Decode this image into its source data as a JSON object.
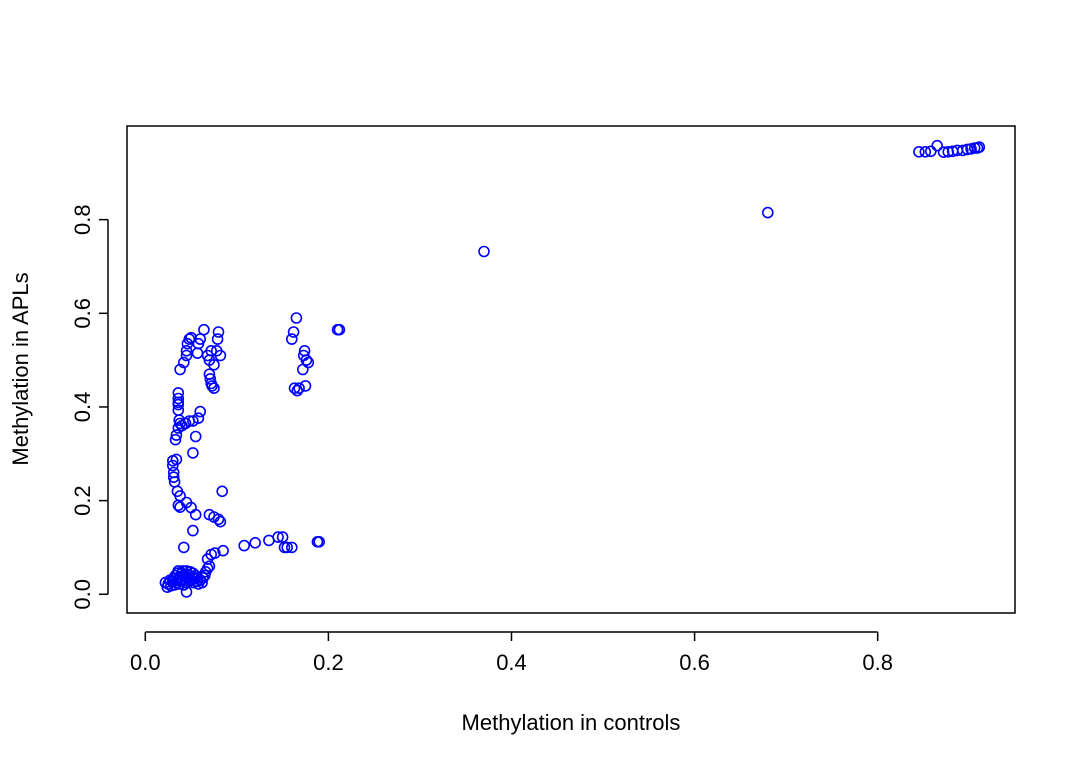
{
  "chart_data": {
    "type": "scatter",
    "title": "",
    "xlabel": "Methylation in controls",
    "ylabel": "Methylation in APLs",
    "xlim": [
      -0.02,
      0.95
    ],
    "ylim": [
      -0.04,
      1.0
    ],
    "xticks": [
      0.0,
      0.2,
      0.4,
      0.6,
      0.8
    ],
    "yticks": [
      0.0,
      0.2,
      0.4,
      0.6,
      0.8
    ],
    "xtick_labels": [
      "0.0",
      "0.2",
      "0.4",
      "0.6",
      "0.8"
    ],
    "ytick_labels": [
      "0.0",
      "0.2",
      "0.4",
      "0.6",
      "0.8"
    ],
    "grid": false,
    "legend": "none",
    "point_color": "#0000FF",
    "marker": "open-circle",
    "series": [
      {
        "points": [
          [
            0.022,
            0.025
          ],
          [
            0.024,
            0.015
          ],
          [
            0.025,
            0.022
          ],
          [
            0.027,
            0.03
          ],
          [
            0.028,
            0.018
          ],
          [
            0.03,
            0.028
          ],
          [
            0.031,
            0.035
          ],
          [
            0.032,
            0.02
          ],
          [
            0.033,
            0.04
          ],
          [
            0.034,
            0.025
          ],
          [
            0.035,
            0.045
          ],
          [
            0.035,
            0.03
          ],
          [
            0.036,
            0.05
          ],
          [
            0.037,
            0.022
          ],
          [
            0.038,
            0.038
          ],
          [
            0.039,
            0.028
          ],
          [
            0.04,
            0.045
          ],
          [
            0.04,
            0.032
          ],
          [
            0.041,
            0.05
          ],
          [
            0.042,
            0.02
          ],
          [
            0.043,
            0.04
          ],
          [
            0.044,
            0.03
          ],
          [
            0.045,
            0.05
          ],
          [
            0.045,
            0.025
          ],
          [
            0.046,
            0.035
          ],
          [
            0.047,
            0.042
          ],
          [
            0.048,
            0.028
          ],
          [
            0.049,
            0.048
          ],
          [
            0.05,
            0.03
          ],
          [
            0.051,
            0.038
          ],
          [
            0.052,
            0.045
          ],
          [
            0.053,
            0.025
          ],
          [
            0.054,
            0.033
          ],
          [
            0.055,
            0.04
          ],
          [
            0.056,
            0.028
          ],
          [
            0.057,
            0.035
          ],
          [
            0.058,
            0.022
          ],
          [
            0.06,
            0.03
          ],
          [
            0.062,
            0.025
          ],
          [
            0.063,
            0.035
          ],
          [
            0.065,
            0.04
          ],
          [
            0.066,
            0.048
          ],
          [
            0.068,
            0.055
          ],
          [
            0.07,
            0.06
          ],
          [
            0.045,
            0.005
          ],
          [
            0.042,
            0.1
          ],
          [
            0.068,
            0.075
          ],
          [
            0.072,
            0.085
          ],
          [
            0.076,
            0.088
          ],
          [
            0.085,
            0.093
          ],
          [
            0.108,
            0.104
          ],
          [
            0.12,
            0.11
          ],
          [
            0.135,
            0.115
          ],
          [
            0.145,
            0.122
          ],
          [
            0.15,
            0.122
          ],
          [
            0.152,
            0.1
          ],
          [
            0.155,
            0.1
          ],
          [
            0.16,
            0.1
          ],
          [
            0.188,
            0.112
          ],
          [
            0.19,
            0.112
          ],
          [
            0.036,
            0.19
          ],
          [
            0.038,
            0.186
          ],
          [
            0.045,
            0.196
          ],
          [
            0.05,
            0.185
          ],
          [
            0.055,
            0.17
          ],
          [
            0.07,
            0.17
          ],
          [
            0.075,
            0.165
          ],
          [
            0.08,
            0.16
          ],
          [
            0.082,
            0.155
          ],
          [
            0.084,
            0.22
          ],
          [
            0.052,
            0.136
          ],
          [
            0.03,
            0.285
          ],
          [
            0.03,
            0.275
          ],
          [
            0.031,
            0.26
          ],
          [
            0.031,
            0.25
          ],
          [
            0.032,
            0.24
          ],
          [
            0.034,
            0.288
          ],
          [
            0.035,
            0.22
          ],
          [
            0.038,
            0.21
          ],
          [
            0.052,
            0.302
          ],
          [
            0.033,
            0.33
          ],
          [
            0.034,
            0.34
          ],
          [
            0.036,
            0.355
          ],
          [
            0.037,
            0.372
          ],
          [
            0.038,
            0.365
          ],
          [
            0.04,
            0.36
          ],
          [
            0.044,
            0.365
          ],
          [
            0.048,
            0.37
          ],
          [
            0.052,
            0.37
          ],
          [
            0.055,
            0.337
          ],
          [
            0.058,
            0.376
          ],
          [
            0.06,
            0.39
          ],
          [
            0.036,
            0.393
          ],
          [
            0.036,
            0.405
          ],
          [
            0.036,
            0.41
          ],
          [
            0.036,
            0.418
          ],
          [
            0.036,
            0.43
          ],
          [
            0.038,
            0.48
          ],
          [
            0.042,
            0.495
          ],
          [
            0.045,
            0.51
          ],
          [
            0.045,
            0.52
          ],
          [
            0.046,
            0.535
          ],
          [
            0.048,
            0.545
          ],
          [
            0.05,
            0.548
          ],
          [
            0.057,
            0.515
          ],
          [
            0.058,
            0.535
          ],
          [
            0.06,
            0.545
          ],
          [
            0.064,
            0.565
          ],
          [
            0.068,
            0.51
          ],
          [
            0.07,
            0.5
          ],
          [
            0.072,
            0.52
          ],
          [
            0.075,
            0.49
          ],
          [
            0.07,
            0.47
          ],
          [
            0.071,
            0.46
          ],
          [
            0.072,
            0.45
          ],
          [
            0.073,
            0.445
          ],
          [
            0.075,
            0.44
          ],
          [
            0.078,
            0.52
          ],
          [
            0.079,
            0.545
          ],
          [
            0.08,
            0.56
          ],
          [
            0.082,
            0.51
          ],
          [
            0.16,
            0.545
          ],
          [
            0.162,
            0.56
          ],
          [
            0.165,
            0.59
          ],
          [
            0.163,
            0.44
          ],
          [
            0.166,
            0.435
          ],
          [
            0.168,
            0.44
          ],
          [
            0.172,
            0.48
          ],
          [
            0.173,
            0.51
          ],
          [
            0.174,
            0.52
          ],
          [
            0.175,
            0.445
          ],
          [
            0.176,
            0.5
          ],
          [
            0.178,
            0.495
          ],
          [
            0.21,
            0.565
          ],
          [
            0.212,
            0.565
          ],
          [
            0.37,
            0.732
          ],
          [
            0.68,
            0.815
          ],
          [
            0.845,
            0.945
          ],
          [
            0.852,
            0.945
          ],
          [
            0.858,
            0.946
          ],
          [
            0.865,
            0.958
          ],
          [
            0.872,
            0.944
          ],
          [
            0.877,
            0.945
          ],
          [
            0.882,
            0.946
          ],
          [
            0.887,
            0.948
          ],
          [
            0.893,
            0.948
          ],
          [
            0.898,
            0.95
          ],
          [
            0.902,
            0.951
          ],
          [
            0.906,
            0.953
          ],
          [
            0.909,
            0.953
          ],
          [
            0.911,
            0.955
          ]
        ]
      }
    ]
  }
}
